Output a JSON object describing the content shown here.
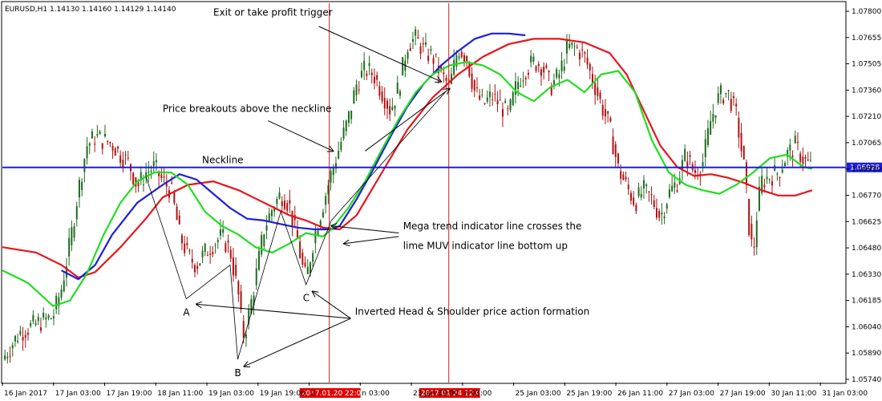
{
  "chart_data": {
    "type": "candlestick",
    "title": "EURUSD,H1  1.14130 1.14160 1.14129 1.14140",
    "symbol": "EURUSD,H1",
    "ylim": [
      1.0572,
      1.0785
    ],
    "price_ticks": [
      "1.07800",
      "1.07655",
      "1.07505",
      "1.07360",
      "1.07210",
      "1.07065",
      "1.06920",
      "1.06770",
      "1.06625",
      "1.06480",
      "1.06330",
      "1.06185",
      "1.06040",
      "1.05890",
      "1.05740"
    ],
    "time_ticks": [
      "16 Jan 2017",
      "17 Jan 03:00",
      "17 Jan 19:00",
      "18 Jan 11:00",
      "19 Jan 03:00",
      "19 Jan 19:00",
      "2",
      "n 03:00",
      "23 Jan 19:00",
      "n 03:00",
      "25 Jan 03:00",
      "25 Jan 19:00",
      "26 Jan 11:00",
      "27 Jan 03:00",
      "27 Jan 19:00",
      "30 Jan 11:00",
      "31 Jan 03:00"
    ],
    "vlines": [
      {
        "x": 0.3875,
        "label": "2017.01.20 22:00"
      },
      {
        "x": 0.5292,
        "label": "2017.01.24 12:00"
      }
    ],
    "neckline": {
      "price": 1.06928,
      "label": "Neckline",
      "price_label": "1.06928"
    },
    "series": [
      {
        "name": "",
        "color": "#e8141b",
        "kind": "ma",
        "points": [
          [
            0,
            1.0648
          ],
          [
            0.04,
            1.0645
          ],
          [
            0.07,
            1.0638
          ],
          [
            0.09,
            1.0631
          ],
          [
            0.11,
            1.0634
          ],
          [
            0.14,
            1.0648
          ],
          [
            0.17,
            1.0664
          ],
          [
            0.19,
            1.0676
          ],
          [
            0.22,
            1.0683
          ],
          [
            0.25,
            1.0685
          ],
          [
            0.28,
            1.068
          ],
          [
            0.31,
            1.0673
          ],
          [
            0.34,
            1.0666
          ],
          [
            0.36,
            1.0663
          ],
          [
            0.38,
            1.0659
          ],
          [
            0.4,
            1.0658
          ],
          [
            0.42,
            1.0666
          ],
          [
            0.45,
            1.069
          ],
          [
            0.48,
            1.0714
          ],
          [
            0.51,
            1.0732
          ],
          [
            0.54,
            1.0745
          ],
          [
            0.57,
            1.0755
          ],
          [
            0.6,
            1.0762
          ],
          [
            0.63,
            1.0765
          ],
          [
            0.66,
            1.0765
          ],
          [
            0.69,
            1.0763
          ],
          [
            0.72,
            1.0757
          ],
          [
            0.74,
            1.0745
          ],
          [
            0.76,
            1.0725
          ],
          [
            0.78,
            1.0705
          ],
          [
            0.8,
            1.0693
          ],
          [
            0.82,
            1.0688
          ],
          [
            0.84,
            1.0689
          ],
          [
            0.86,
            1.0687
          ],
          [
            0.88,
            1.0684
          ],
          [
            0.9,
            1.068
          ],
          [
            0.92,
            1.0677
          ],
          [
            0.94,
            1.0677
          ],
          [
            0.96,
            1.068
          ]
        ]
      },
      {
        "name": "",
        "color": "#1e1edc",
        "kind": "ma",
        "points": [
          [
            0.07,
            1.0635
          ],
          [
            0.09,
            1.063
          ],
          [
            0.11,
            1.0638
          ],
          [
            0.13,
            1.0655
          ],
          [
            0.16,
            1.0673
          ],
          [
            0.19,
            1.0683
          ],
          [
            0.21,
            1.0689
          ],
          [
            0.23,
            1.0686
          ],
          [
            0.25,
            1.0678
          ],
          [
            0.27,
            1.067
          ],
          [
            0.29,
            1.0664
          ],
          [
            0.31,
            1.0663
          ],
          [
            0.33,
            1.0661
          ],
          [
            0.35,
            1.0659
          ],
          [
            0.37,
            1.0658
          ],
          [
            0.39,
            1.0658
          ],
          [
            0.4,
            1.066
          ],
          [
            0.42,
            1.0675
          ],
          [
            0.44,
            1.0692
          ],
          [
            0.46,
            1.071
          ],
          [
            0.48,
            1.0727
          ],
          [
            0.5,
            1.074
          ],
          [
            0.52,
            1.075
          ],
          [
            0.54,
            1.0758
          ],
          [
            0.56,
            1.0765
          ],
          [
            0.58,
            1.0768
          ],
          [
            0.6,
            1.0768
          ],
          [
            0.62,
            1.0767
          ]
        ]
      },
      {
        "name": "",
        "color": "#22dd22",
        "kind": "ma",
        "points": [
          [
            0,
            1.0635
          ],
          [
            0.03,
            1.0628
          ],
          [
            0.06,
            1.0615
          ],
          [
            0.08,
            1.0618
          ],
          [
            0.1,
            1.0633
          ],
          [
            0.12,
            1.0655
          ],
          [
            0.14,
            1.0673
          ],
          [
            0.16,
            1.0685
          ],
          [
            0.18,
            1.069
          ],
          [
            0.2,
            1.069
          ],
          [
            0.22,
            1.0683
          ],
          [
            0.24,
            1.0668
          ],
          [
            0.26,
            1.066
          ],
          [
            0.28,
            1.0655
          ],
          [
            0.3,
            1.0648
          ],
          [
            0.32,
            1.0645
          ],
          [
            0.34,
            1.065
          ],
          [
            0.36,
            1.0656
          ],
          [
            0.38,
            1.0654
          ],
          [
            0.39,
            1.0658
          ],
          [
            0.41,
            1.067
          ],
          [
            0.43,
            1.0685
          ],
          [
            0.45,
            1.0703
          ],
          [
            0.47,
            1.072
          ],
          [
            0.49,
            1.0735
          ],
          [
            0.51,
            1.0745
          ],
          [
            0.53,
            1.075
          ],
          [
            0.55,
            1.0752
          ],
          [
            0.57,
            1.075
          ],
          [
            0.59,
            1.0745
          ],
          [
            0.61,
            1.0735
          ],
          [
            0.63,
            1.073
          ],
          [
            0.65,
            1.0738
          ],
          [
            0.67,
            1.0742
          ],
          [
            0.69,
            1.0735
          ],
          [
            0.71,
            1.0745
          ],
          [
            0.73,
            1.0747
          ],
          [
            0.75,
            1.0735
          ],
          [
            0.77,
            1.0708
          ],
          [
            0.79,
            1.069
          ],
          [
            0.81,
            1.0683
          ],
          [
            0.83,
            1.068
          ],
          [
            0.85,
            1.0678
          ],
          [
            0.87,
            1.0683
          ],
          [
            0.89,
            1.069
          ],
          [
            0.91,
            1.0698
          ],
          [
            0.93,
            1.07
          ],
          [
            0.95,
            1.0693
          ],
          [
            0.96,
            1.0692
          ]
        ]
      }
    ],
    "price_path": [
      [
        0,
        1.0585
      ],
      [
        0.02,
        1.06
      ],
      [
        0.04,
        1.0605
      ],
      [
        0.06,
        1.0609
      ],
      [
        0.07,
        1.0625
      ],
      [
        0.08,
        1.065
      ],
      [
        0.09,
        1.068
      ],
      [
        0.1,
        1.0705
      ],
      [
        0.11,
        1.071
      ],
      [
        0.12,
        1.0708
      ],
      [
        0.13,
        1.0706
      ],
      [
        0.14,
        1.07
      ],
      [
        0.15,
        1.0695
      ],
      [
        0.16,
        1.0682
      ],
      [
        0.17,
        1.069
      ],
      [
        0.18,
        1.0693
      ],
      [
        0.19,
        1.0685
      ],
      [
        0.2,
        1.068
      ],
      [
        0.21,
        1.0655
      ],
      [
        0.22,
        1.0643
      ],
      [
        0.23,
        1.0638
      ],
      [
        0.24,
        1.0645
      ],
      [
        0.25,
        1.065
      ],
      [
        0.26,
        1.0654
      ],
      [
        0.27,
        1.0646
      ],
      [
        0.28,
        1.062
      ],
      [
        0.285,
        1.0598
      ],
      [
        0.29,
        1.0605
      ],
      [
        0.3,
        1.063
      ],
      [
        0.31,
        1.0658
      ],
      [
        0.32,
        1.067
      ],
      [
        0.33,
        1.0678
      ],
      [
        0.34,
        1.0672
      ],
      [
        0.345,
        1.066
      ],
      [
        0.35,
        1.0652
      ],
      [
        0.355,
        1.0638
      ],
      [
        0.36,
        1.063
      ],
      [
        0.37,
        1.0655
      ],
      [
        0.38,
        1.0672
      ],
      [
        0.39,
        1.069
      ],
      [
        0.4,
        1.0705
      ],
      [
        0.41,
        1.072
      ],
      [
        0.42,
        1.074
      ],
      [
        0.43,
        1.0748
      ],
      [
        0.44,
        1.0745
      ],
      [
        0.45,
        1.0735
      ],
      [
        0.46,
        1.0725
      ],
      [
        0.47,
        1.0738
      ],
      [
        0.48,
        1.0762
      ],
      [
        0.49,
        1.0765
      ],
      [
        0.5,
        1.0758
      ],
      [
        0.51,
        1.0755
      ],
      [
        0.52,
        1.0745
      ],
      [
        0.53,
        1.0738
      ],
      [
        0.54,
        1.076
      ],
      [
        0.55,
        1.0755
      ],
      [
        0.56,
        1.0735
      ],
      [
        0.57,
        1.0728
      ],
      [
        0.58,
        1.0733
      ],
      [
        0.59,
        1.0728
      ],
      [
        0.6,
        1.0722
      ],
      [
        0.61,
        1.074
      ],
      [
        0.62,
        1.0748
      ],
      [
        0.63,
        1.0752
      ],
      [
        0.64,
        1.075
      ],
      [
        0.65,
        1.0738
      ],
      [
        0.66,
        1.0745
      ],
      [
        0.67,
        1.076
      ],
      [
        0.68,
        1.076
      ],
      [
        0.69,
        1.0755
      ],
      [
        0.7,
        1.0742
      ],
      [
        0.71,
        1.0728
      ],
      [
        0.72,
        1.0715
      ],
      [
        0.73,
        1.0692
      ],
      [
        0.74,
        1.0682
      ],
      [
        0.75,
        1.0673
      ],
      [
        0.76,
        1.068
      ],
      [
        0.77,
        1.0675
      ],
      [
        0.78,
        1.0665
      ],
      [
        0.79,
        1.0678
      ],
      [
        0.8,
        1.0685
      ],
      [
        0.81,
        1.07
      ],
      [
        0.82,
        1.069
      ],
      [
        0.83,
        1.0695
      ],
      [
        0.84,
        1.072
      ],
      [
        0.85,
        1.0733
      ],
      [
        0.86,
        1.0735
      ],
      [
        0.87,
        1.0722
      ],
      [
        0.88,
        1.069
      ],
      [
        0.885,
        1.066
      ],
      [
        0.89,
        1.0643
      ],
      [
        0.895,
        1.067
      ],
      [
        0.9,
        1.0685
      ],
      [
        0.91,
        1.0688
      ],
      [
        0.92,
        1.069
      ],
      [
        0.93,
        1.07
      ],
      [
        0.94,
        1.0705
      ],
      [
        0.95,
        1.0697
      ],
      [
        0.96,
        1.0693
      ]
    ],
    "annotations": [
      {
        "text": "Exit or take profit trigger",
        "tx": 0.25,
        "ty": 1.0778,
        "ax": 0.52,
        "ay": 1.0741,
        "tip_x": 0.375,
        "tip_y": 1.0772
      },
      {
        "text": "Price breakouts above the neckline",
        "tx": 0.19,
        "ty": 1.0724,
        "ax": 0.392,
        "ay": 1.0702,
        "tip_x": 0.315,
        "tip_y": 1.0719
      },
      {
        "text": "Mega trend indicator line crosses the",
        "tx": 0.475,
        "ty": 1.0658,
        "ax": 0.39,
        "ay": 1.066,
        "tip_x": 0.47,
        "tip_y": 1.0656
      },
      {
        "text": "lime MUV indicator line bottom up",
        "tx": 0.475,
        "ty": 1.0647,
        "ax": 0.405,
        "ay": 1.065,
        "tip_x": 0.47,
        "tip_y": 1.0654
      },
      {
        "text": "Inverted Head & Shoulder price action formation",
        "tx": 0.418,
        "ty": 1.061,
        "ax": 0.23,
        "ay": 1.0616,
        "tip_x": 0.413,
        "tip_y": 1.0608
      }
    ],
    "markers": [
      {
        "label": "A",
        "x": 0.218,
        "y": 1.0616
      },
      {
        "label": "B",
        "x": 0.279,
        "y": 1.0582
      },
      {
        "label": "C",
        "x": 0.36,
        "y": 1.0624
      }
    ]
  }
}
